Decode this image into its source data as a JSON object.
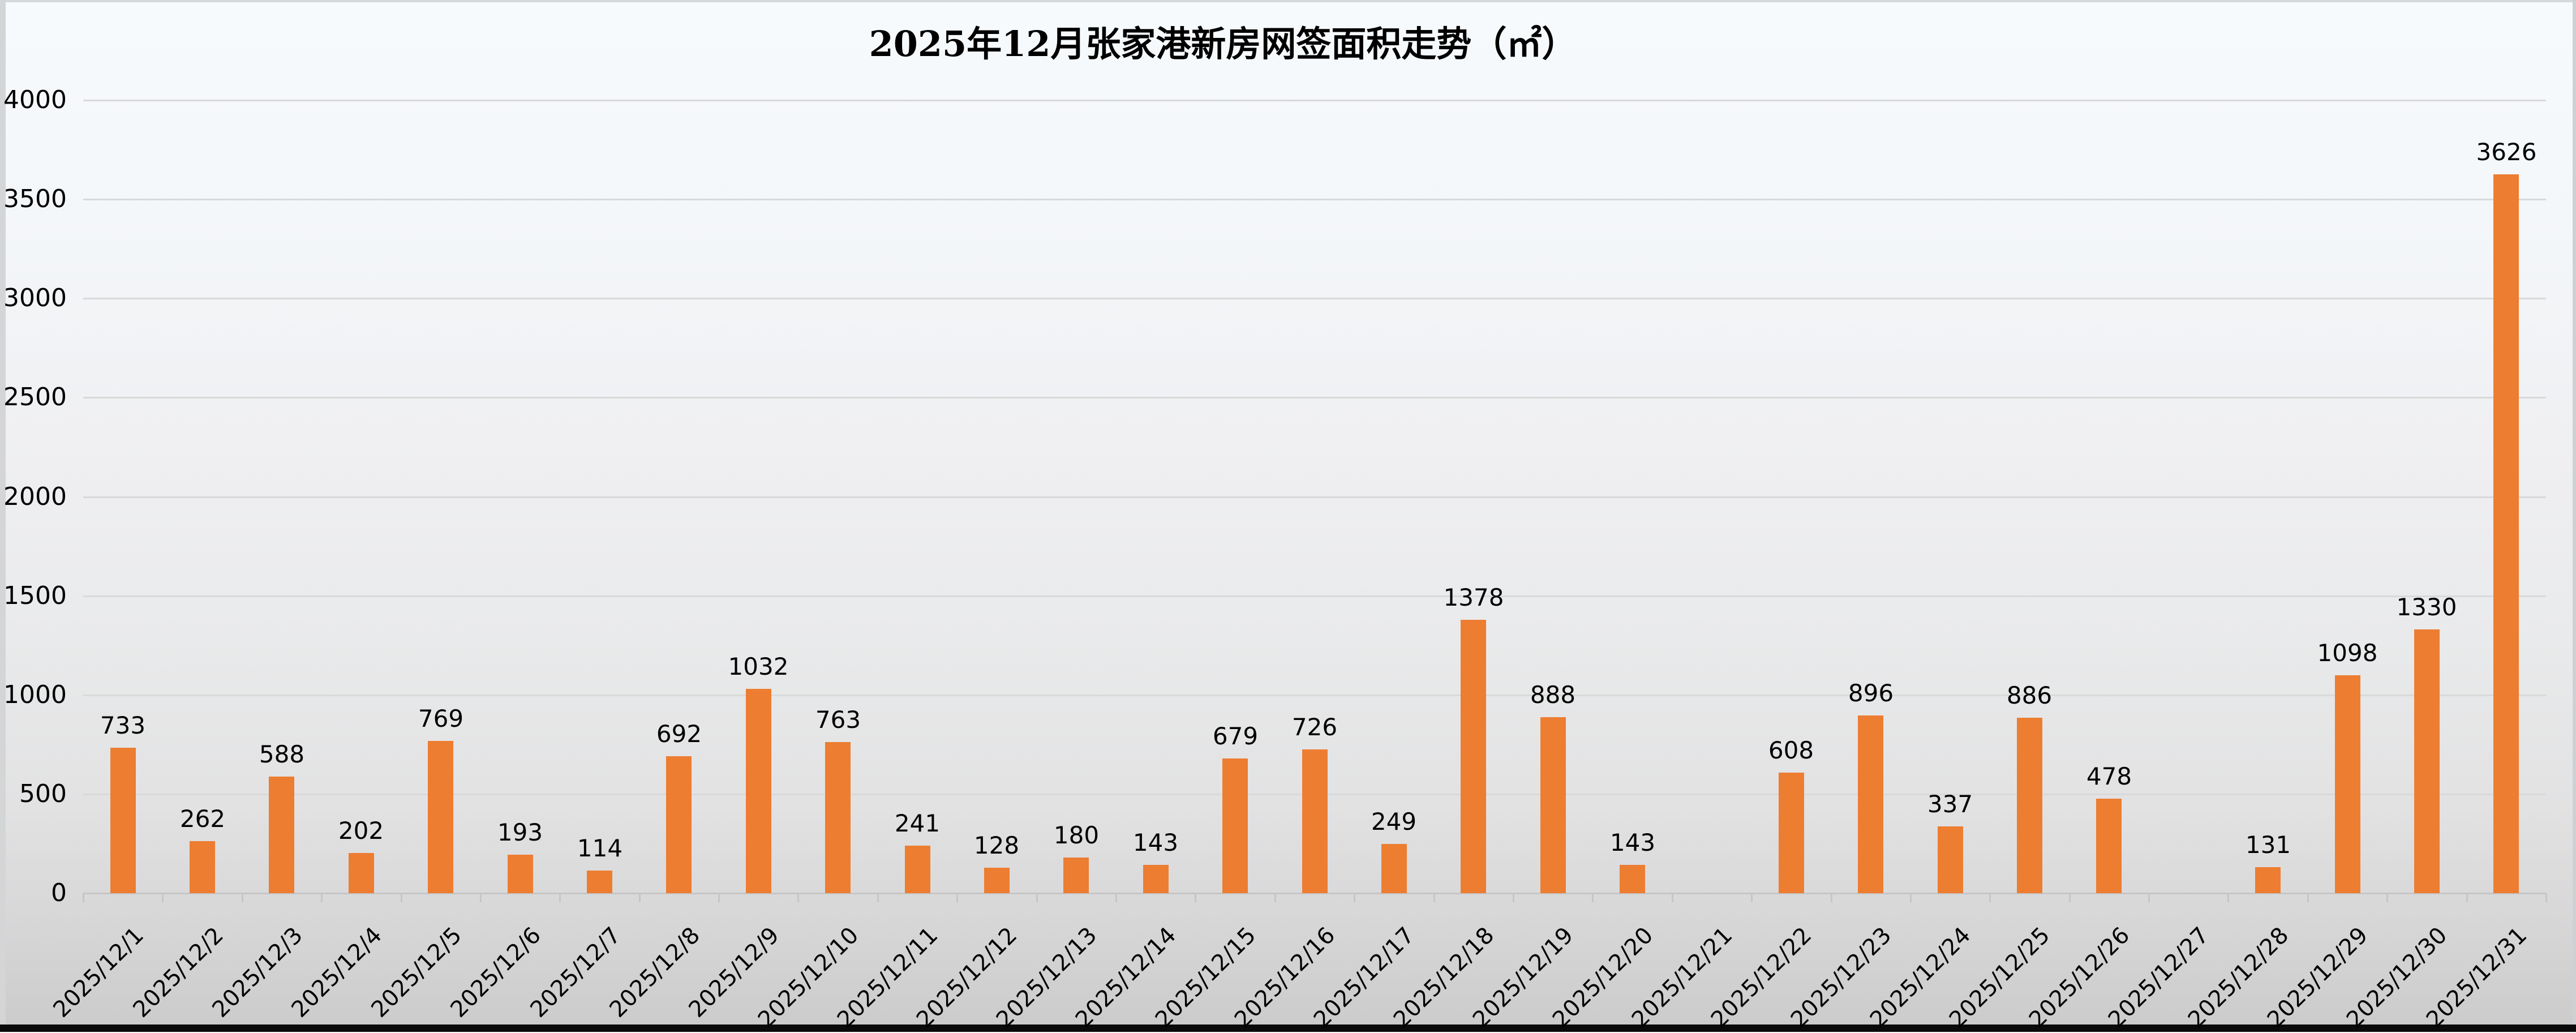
{
  "chart_data": {
    "type": "bar",
    "title": "2025年12月张家港新房网签面积走势（㎡）",
    "categories": [
      "2025/12/1",
      "2025/12/2",
      "2025/12/3",
      "2025/12/4",
      "2025/12/5",
      "2025/12/6",
      "2025/12/7",
      "2025/12/8",
      "2025/12/9",
      "2025/12/10",
      "2025/12/11",
      "2025/12/12",
      "2025/12/13",
      "2025/12/14",
      "2025/12/15",
      "2025/12/16",
      "2025/12/17",
      "2025/12/18",
      "2025/12/19",
      "2025/12/20",
      "2025/12/21",
      "2025/12/22",
      "2025/12/23",
      "2025/12/24",
      "2025/12/25",
      "2025/12/26",
      "2025/12/27",
      "2025/12/28",
      "2025/12/29",
      "2025/12/30",
      "2025/12/31"
    ],
    "values": [
      733,
      262,
      588,
      202,
      769,
      193,
      114,
      692,
      1032,
      763,
      241,
      128,
      180,
      143,
      679,
      726,
      249,
      1378,
      888,
      143,
      null,
      608,
      896,
      337,
      886,
      478,
      null,
      131,
      1098,
      1330,
      3626
    ],
    "xlabel": "",
    "ylabel": "",
    "ylim": [
      0,
      4000
    ],
    "ytick_step": 500,
    "y_ticks": [
      0,
      500,
      1000,
      1500,
      2000,
      2500,
      3000,
      3500,
      4000
    ],
    "bar_color": "#ED7D31",
    "grid": "horizontal",
    "grid_color": "#D9D9D9",
    "axis_color": "#C6C6C6",
    "data_label_color": "#000000",
    "legend_position": "none"
  }
}
